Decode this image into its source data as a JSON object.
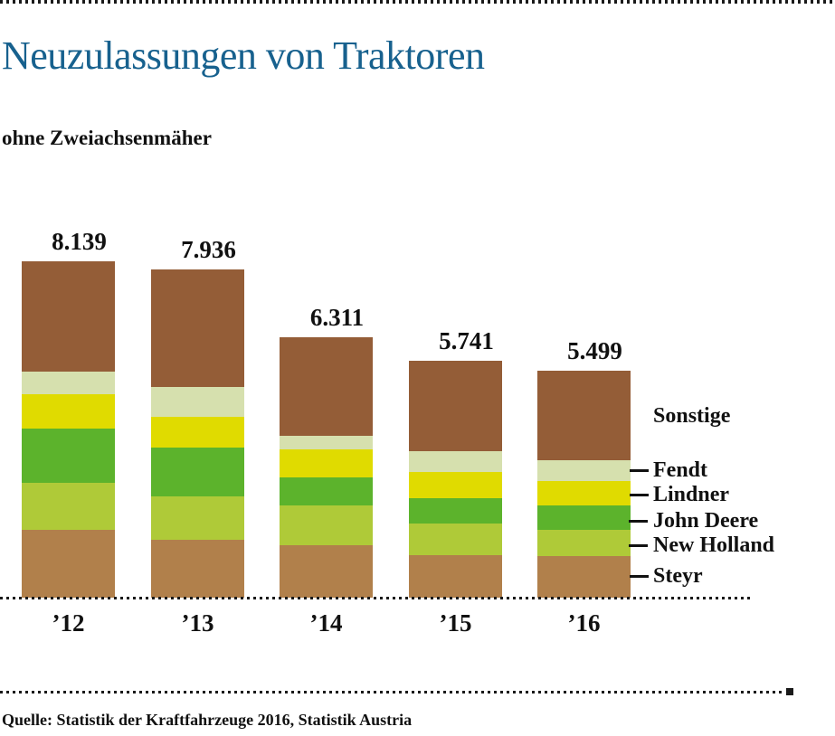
{
  "header": {
    "title": "Neuzulassungen von Traktoren",
    "subtitle": "ohne Zweiachsenmäher"
  },
  "footer": {
    "source": "Quelle: Statistik der Kraftfahrzeuge 2016, Statistik Austria"
  },
  "colors": {
    "title_blue": "#17618E",
    "text": "#111111",
    "dotted_rule": "#1A1A1A",
    "sonstige": "#945D37",
    "fendt": "#D6E0AE",
    "lindner": "#E0DB00",
    "john_deere": "#5CB32C",
    "new_holland": "#AFCA38",
    "steyr": "#B1804B"
  },
  "legend": {
    "position": "right",
    "items": [
      {
        "label": "Sonstige"
      },
      {
        "label": "Fendt"
      },
      {
        "label": "Lindner"
      },
      {
        "label": "John Deere"
      },
      {
        "label": "New Holland"
      },
      {
        "label": "Steyr"
      }
    ]
  },
  "chart_data": {
    "type": "bar",
    "stacked": true,
    "title": "Neuzulassungen von Traktoren",
    "subtitle": "ohne Zweiachsenmäher",
    "xlabel": "",
    "ylabel": "",
    "grid": false,
    "legend_position": "right",
    "baseline_style": "dotted",
    "categories": [
      "’12",
      "’13",
      "’14",
      "’15",
      "’16"
    ],
    "totals": [
      8139,
      7936,
      6311,
      5741,
      5499
    ],
    "total_labels": [
      "8.139",
      "7.936",
      "6.311",
      "5.741",
      "5.499"
    ],
    "series": [
      {
        "name": "Steyr",
        "color": "#B1804B",
        "values": [
          1648,
          1390,
          1271,
          1026,
          1010
        ]
      },
      {
        "name": "New Holland",
        "color": "#AFCA38",
        "values": [
          1138,
          1054,
          953,
          764,
          633
        ]
      },
      {
        "name": "John Deere",
        "color": "#5CB32C",
        "values": [
          1313,
          1178,
          686,
          618,
          583
        ]
      },
      {
        "name": "Lindner",
        "color": "#E0DB00",
        "values": [
          818,
          748,
          671,
          633,
          604
        ]
      },
      {
        "name": "Fendt",
        "color": "#D6E0AE",
        "values": [
          560,
          735,
          347,
          496,
          487
        ]
      },
      {
        "name": "Sonstige",
        "color": "#945D37",
        "values": [
          2662,
          2831,
          2383,
          2204,
          2182
        ]
      }
    ]
  }
}
